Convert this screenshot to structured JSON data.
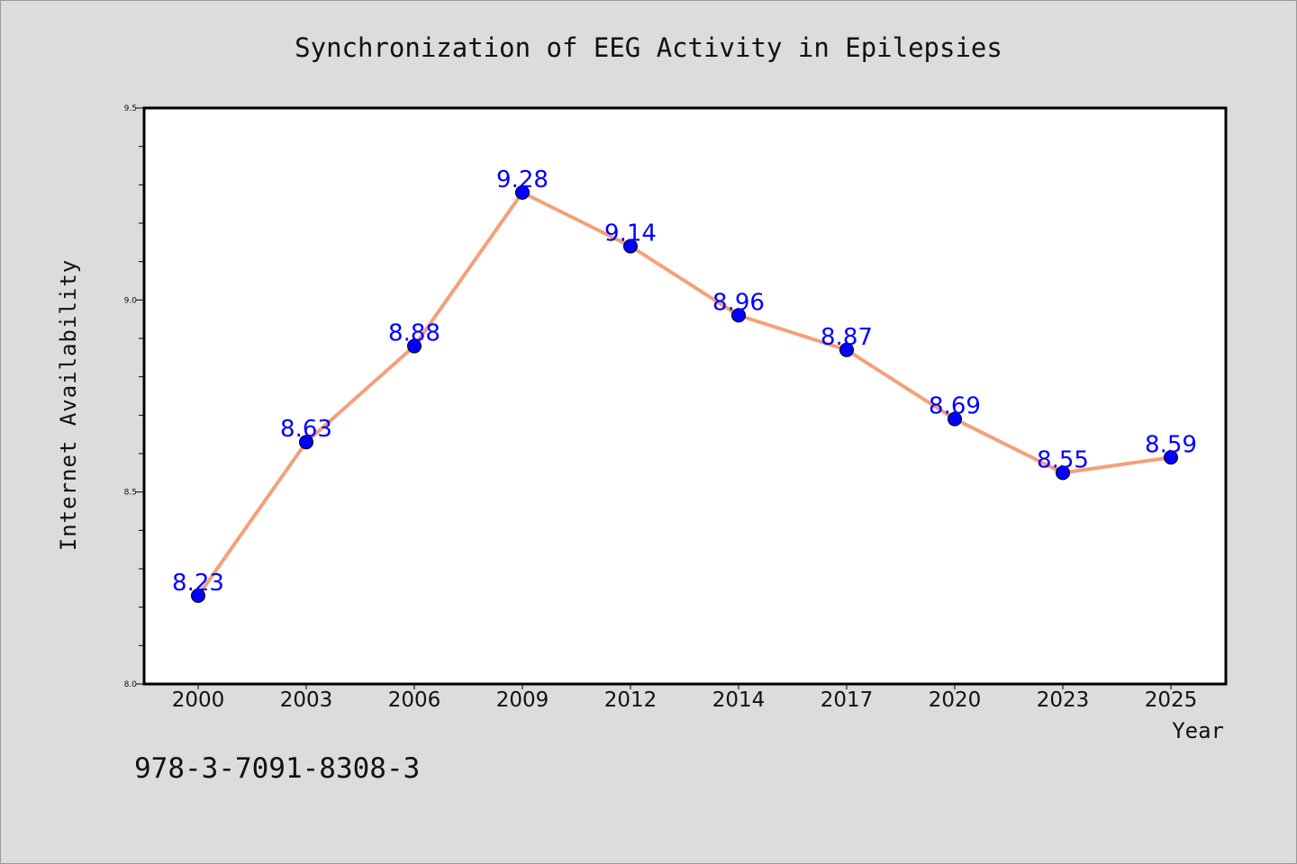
{
  "chart_data": {
    "type": "line",
    "title": "Synchronization of EEG Activity in Epilepsies",
    "xlabel": "Year",
    "ylabel": "Internet Availability",
    "categories": [
      "2000",
      "2003",
      "2006",
      "2009",
      "2012",
      "2014",
      "2017",
      "2020",
      "2023",
      "2025"
    ],
    "series": [
      {
        "values": [
          8.23,
          8.63,
          8.88,
          9.28,
          9.14,
          8.96,
          8.87,
          8.69,
          8.55,
          8.59
        ],
        "line_color": "#f4a07a",
        "marker_color": "#0000ff"
      }
    ],
    "data_labels": [
      "8.23",
      "8.63",
      "8.88",
      "9.28",
      "9.14",
      "8.96",
      "8.87",
      "8.69",
      "8.55",
      "8.59"
    ],
    "ylim": [
      8.0,
      9.5
    ],
    "yticks": [
      "8.0",
      "8.5",
      "9.0",
      "9.5"
    ],
    "grid": false,
    "legend": "none"
  },
  "footnote": "978-3-7091-8308-3",
  "colors": {
    "background": "#dcdcdc",
    "plot_background": "#ffffff",
    "line": "#f4a07a",
    "marker": "#0000ff",
    "data_label": "#0000ff"
  }
}
